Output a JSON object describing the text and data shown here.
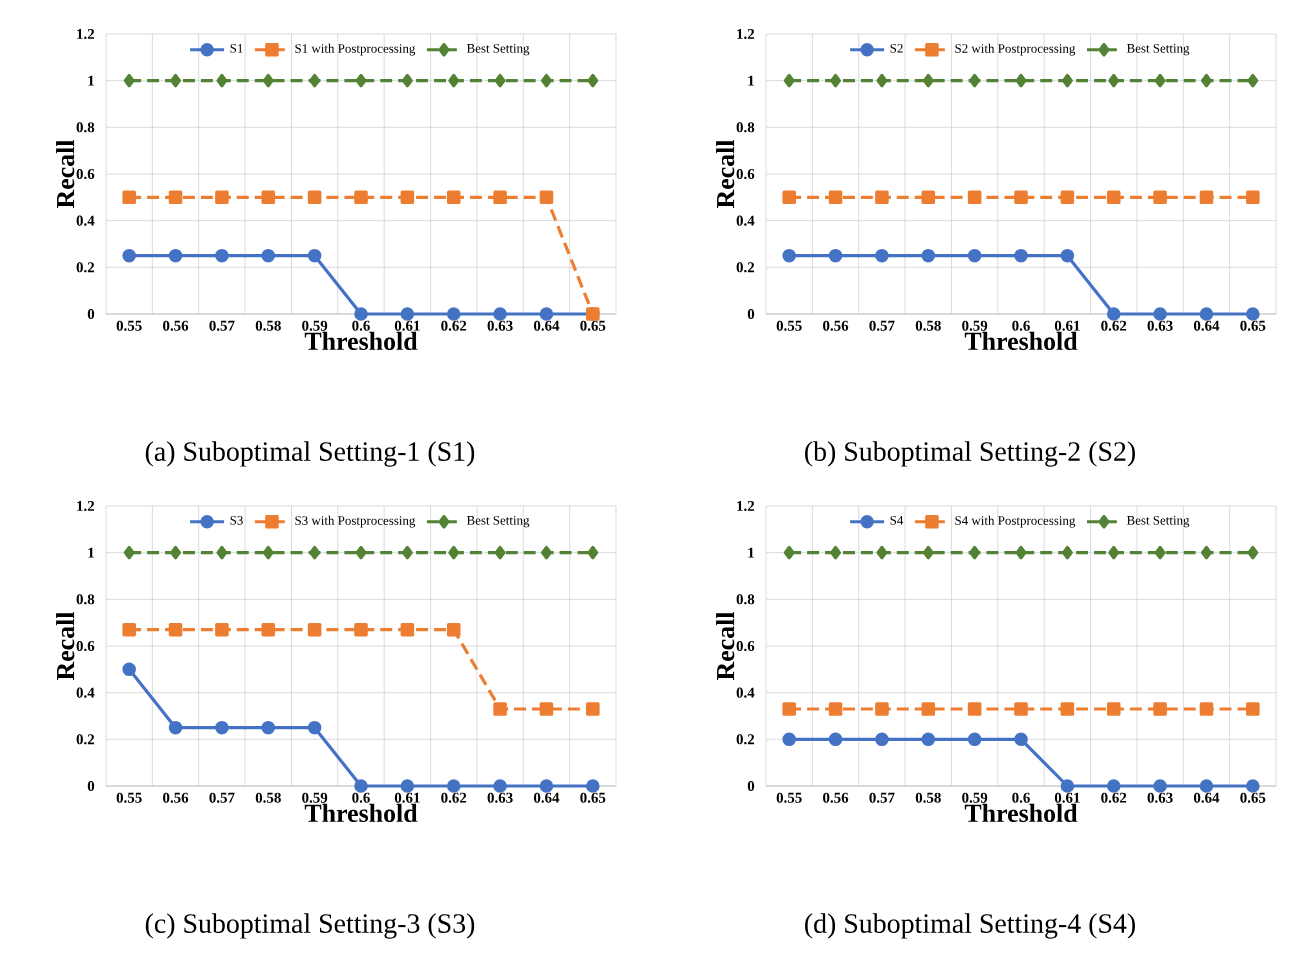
{
  "chart_data": [
    {
      "type": "line",
      "xlabel": "Threshold",
      "ylabel": "Recall",
      "annotations": [
        "(a) Suboptimal Setting-1 (S1)"
      ],
      "categories": [
        "0.55",
        "0.56",
        "0.57",
        "0.58",
        "0.59",
        "0.6",
        "0.61",
        "0.62",
        "0.63",
        "0.64",
        "0.65"
      ],
      "ylim": [
        0,
        1.2
      ],
      "yticks": [
        0,
        0.2,
        0.4,
        0.6,
        0.8,
        1,
        1.2
      ],
      "grid": true,
      "legend": "top",
      "series": [
        {
          "name": "S1",
          "color": "#4472c4",
          "marker": "circle",
          "line_style": "solid",
          "values": [
            0.25,
            0.25,
            0.25,
            0.25,
            0.25,
            0,
            0,
            0,
            0,
            0,
            0
          ]
        },
        {
          "name": "S1 with Postprocessing",
          "color": "#ed7d31",
          "marker": "square",
          "line_style": "dashed",
          "values": [
            0.5,
            0.5,
            0.5,
            0.5,
            0.5,
            0.5,
            0.5,
            0.5,
            0.5,
            0.5,
            0
          ]
        },
        {
          "name": "Best Setting",
          "color": "#548235",
          "marker": "diamond",
          "line_style": "dashed",
          "values": [
            1,
            1,
            1,
            1,
            1,
            1,
            1,
            1,
            1,
            1,
            1
          ]
        }
      ]
    },
    {
      "type": "line",
      "xlabel": "Threshold",
      "ylabel": "Recall",
      "annotations": [
        "(b) Suboptimal Setting-2 (S2)"
      ],
      "categories": [
        "0.55",
        "0.56",
        "0.57",
        "0.58",
        "0.59",
        "0.6",
        "0.61",
        "0.62",
        "0.63",
        "0.64",
        "0.65"
      ],
      "ylim": [
        0,
        1.2
      ],
      "yticks": [
        0,
        0.2,
        0.4,
        0.6,
        0.8,
        1,
        1.2
      ],
      "grid": true,
      "legend": "top",
      "series": [
        {
          "name": "S2",
          "color": "#4472c4",
          "marker": "circle",
          "line_style": "solid",
          "values": [
            0.25,
            0.25,
            0.25,
            0.25,
            0.25,
            0.25,
            0.25,
            0,
            0,
            0,
            0
          ]
        },
        {
          "name": "S2 with Postprocessing",
          "color": "#ed7d31",
          "marker": "square",
          "line_style": "dashed",
          "values": [
            0.5,
            0.5,
            0.5,
            0.5,
            0.5,
            0.5,
            0.5,
            0.5,
            0.5,
            0.5,
            0.5
          ]
        },
        {
          "name": "Best Setting",
          "color": "#548235",
          "marker": "diamond",
          "line_style": "dashed",
          "values": [
            1,
            1,
            1,
            1,
            1,
            1,
            1,
            1,
            1,
            1,
            1
          ]
        }
      ]
    },
    {
      "type": "line",
      "xlabel": "Threshold",
      "ylabel": "Recall",
      "annotations": [
        "(c) Suboptimal Setting-3 (S3)"
      ],
      "categories": [
        "0.55",
        "0.56",
        "0.57",
        "0.58",
        "0.59",
        "0.6",
        "0.61",
        "0.62",
        "0.63",
        "0.64",
        "0.65"
      ],
      "ylim": [
        0,
        1.2
      ],
      "yticks": [
        0,
        0.2,
        0.4,
        0.6,
        0.8,
        1,
        1.2
      ],
      "grid": true,
      "legend": "top",
      "series": [
        {
          "name": "S3",
          "color": "#4472c4",
          "marker": "circle",
          "line_style": "solid",
          "values": [
            0.5,
            0.25,
            0.25,
            0.25,
            0.25,
            0,
            0,
            0,
            0,
            0,
            0
          ]
        },
        {
          "name": "S3 with Postprocessing",
          "color": "#ed7d31",
          "marker": "square",
          "line_style": "dashed",
          "values": [
            0.67,
            0.67,
            0.67,
            0.67,
            0.67,
            0.67,
            0.67,
            0.67,
            0.33,
            0.33,
            0.33
          ]
        },
        {
          "name": "Best Setting",
          "color": "#548235",
          "marker": "diamond",
          "line_style": "dashed",
          "values": [
            1,
            1,
            1,
            1,
            1,
            1,
            1,
            1,
            1,
            1,
            1
          ]
        }
      ]
    },
    {
      "type": "line",
      "xlabel": "Threshold",
      "ylabel": "Recall",
      "annotations": [
        "(d) Suboptimal Setting-4 (S4)"
      ],
      "categories": [
        "0.55",
        "0.56",
        "0.57",
        "0.58",
        "0.59",
        "0.6",
        "0.61",
        "0.62",
        "0.63",
        "0.64",
        "0.65"
      ],
      "ylim": [
        0,
        1.2
      ],
      "yticks": [
        0,
        0.2,
        0.4,
        0.6,
        0.8,
        1,
        1.2
      ],
      "grid": true,
      "legend": "top",
      "series": [
        {
          "name": "S4",
          "color": "#4472c4",
          "marker": "circle",
          "line_style": "solid",
          "values": [
            0.2,
            0.2,
            0.2,
            0.2,
            0.2,
            0.2,
            0,
            0,
            0,
            0,
            0
          ]
        },
        {
          "name": "S4 with Postprocessing",
          "color": "#ed7d31",
          "marker": "square",
          "line_style": "dashed",
          "values": [
            0.33,
            0.33,
            0.33,
            0.33,
            0.33,
            0.33,
            0.33,
            0.33,
            0.33,
            0.33,
            0.33
          ]
        },
        {
          "name": "Best Setting",
          "color": "#548235",
          "marker": "diamond",
          "line_style": "dashed",
          "values": [
            1,
            1,
            1,
            1,
            1,
            1,
            1,
            1,
            1,
            1,
            1
          ]
        }
      ]
    }
  ]
}
